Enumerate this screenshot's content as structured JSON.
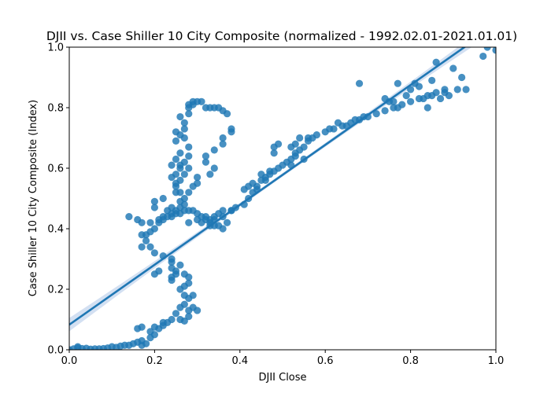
{
  "chart_data": {
    "type": "scatter",
    "title": "DJII vs. Case Shiller 10 City Composite (normalized - 1992.02.01-2021.01.01)",
    "xlabel": "DJII Close",
    "ylabel": "Case Shiller 10 City Composite (Index)",
    "xlim": [
      0,
      1
    ],
    "ylim": [
      0,
      1
    ],
    "xticks": [
      "0.0",
      "0.2",
      "0.4",
      "0.6",
      "0.8",
      "1.0"
    ],
    "yticks": [
      "0.0",
      "0.2",
      "0.4",
      "0.6",
      "0.8",
      "1.0"
    ],
    "grid": false,
    "colors": {
      "points": "#1f77b4",
      "line": "#1f77b4",
      "band": "#aec7e8"
    },
    "regression": {
      "intercept": 0.083,
      "slope": 0.99,
      "band_at_x0": 0.022,
      "band_at_xmid": 0.006,
      "band_at_x1": 0.02
    },
    "points": [
      [
        0.0,
        0.0
      ],
      [
        0.01,
        0.003
      ],
      [
        0.02,
        0.006
      ],
      [
        0.03,
        0.004
      ],
      [
        0.05,
        0.002
      ],
      [
        0.06,
        0.003
      ],
      [
        0.08,
        0.004
      ],
      [
        0.09,
        0.006
      ],
      [
        0.1,
        0.01
      ],
      [
        0.12,
        0.012
      ],
      [
        0.13,
        0.015
      ],
      [
        0.15,
        0.02
      ],
      [
        0.16,
        0.025
      ],
      [
        0.17,
        0.03
      ],
      [
        0.17,
        0.015
      ],
      [
        0.18,
        0.02
      ],
      [
        0.19,
        0.04
      ],
      [
        0.2,
        0.05
      ],
      [
        0.21,
        0.07
      ],
      [
        0.22,
        0.08
      ],
      [
        0.23,
        0.09
      ],
      [
        0.2,
        0.075
      ],
      [
        0.16,
        0.07
      ],
      [
        0.17,
        0.075
      ],
      [
        0.24,
        0.1
      ],
      [
        0.25,
        0.12
      ],
      [
        0.26,
        0.1
      ],
      [
        0.27,
        0.095
      ],
      [
        0.28,
        0.11
      ],
      [
        0.27,
        0.15
      ],
      [
        0.28,
        0.17
      ],
      [
        0.29,
        0.18
      ],
      [
        0.27,
        0.21
      ],
      [
        0.28,
        0.22
      ],
      [
        0.28,
        0.24
      ],
      [
        0.27,
        0.25
      ],
      [
        0.25,
        0.26
      ],
      [
        0.24,
        0.27
      ],
      [
        0.24,
        0.29
      ],
      [
        0.24,
        0.24
      ],
      [
        0.26,
        0.14
      ],
      [
        0.3,
        0.13
      ],
      [
        0.29,
        0.14
      ],
      [
        0.28,
        0.13
      ],
      [
        0.26,
        0.2
      ],
      [
        0.27,
        0.18
      ],
      [
        0.25,
        0.25
      ],
      [
        0.26,
        0.28
      ],
      [
        0.24,
        0.3
      ],
      [
        0.24,
        0.23
      ],
      [
        0.21,
        0.26
      ],
      [
        0.2,
        0.25
      ],
      [
        0.22,
        0.31
      ],
      [
        0.2,
        0.32
      ],
      [
        0.19,
        0.34
      ],
      [
        0.17,
        0.34
      ],
      [
        0.18,
        0.36
      ],
      [
        0.18,
        0.38
      ],
      [
        0.17,
        0.38
      ],
      [
        0.19,
        0.39
      ],
      [
        0.2,
        0.4
      ],
      [
        0.21,
        0.42
      ],
      [
        0.22,
        0.43
      ],
      [
        0.23,
        0.44
      ],
      [
        0.24,
        0.44
      ],
      [
        0.25,
        0.45
      ],
      [
        0.26,
        0.45
      ],
      [
        0.27,
        0.46
      ],
      [
        0.28,
        0.46
      ],
      [
        0.29,
        0.46
      ],
      [
        0.3,
        0.45
      ],
      [
        0.31,
        0.44
      ],
      [
        0.32,
        0.43
      ],
      [
        0.33,
        0.42
      ],
      [
        0.34,
        0.41
      ],
      [
        0.35,
        0.41
      ],
      [
        0.36,
        0.4
      ],
      [
        0.37,
        0.42
      ],
      [
        0.36,
        0.44
      ],
      [
        0.34,
        0.44
      ],
      [
        0.33,
        0.43
      ],
      [
        0.32,
        0.44
      ],
      [
        0.35,
        0.45
      ],
      [
        0.36,
        0.46
      ],
      [
        0.38,
        0.46
      ],
      [
        0.14,
        0.44
      ],
      [
        0.16,
        0.43
      ],
      [
        0.17,
        0.42
      ],
      [
        0.19,
        0.42
      ],
      [
        0.2,
        0.47
      ],
      [
        0.2,
        0.49
      ],
      [
        0.22,
        0.5
      ],
      [
        0.23,
        0.46
      ],
      [
        0.24,
        0.47
      ],
      [
        0.22,
        0.44
      ],
      [
        0.21,
        0.43
      ],
      [
        0.28,
        0.42
      ],
      [
        0.3,
        0.43
      ],
      [
        0.31,
        0.42
      ],
      [
        0.33,
        0.41
      ],
      [
        0.34,
        0.43
      ],
      [
        0.25,
        0.52
      ],
      [
        0.25,
        0.54
      ],
      [
        0.26,
        0.56
      ],
      [
        0.27,
        0.58
      ],
      [
        0.25,
        0.58
      ],
      [
        0.26,
        0.6
      ],
      [
        0.27,
        0.62
      ],
      [
        0.28,
        0.64
      ],
      [
        0.28,
        0.67
      ],
      [
        0.27,
        0.7
      ],
      [
        0.26,
        0.71
      ],
      [
        0.25,
        0.72
      ],
      [
        0.27,
        0.73
      ],
      [
        0.27,
        0.75
      ],
      [
        0.26,
        0.77
      ],
      [
        0.28,
        0.78
      ],
      [
        0.28,
        0.8
      ],
      [
        0.29,
        0.81
      ],
      [
        0.3,
        0.82
      ],
      [
        0.29,
        0.82
      ],
      [
        0.31,
        0.82
      ],
      [
        0.32,
        0.8
      ],
      [
        0.33,
        0.8
      ],
      [
        0.34,
        0.8
      ],
      [
        0.35,
        0.8
      ],
      [
        0.36,
        0.79
      ],
      [
        0.37,
        0.78
      ],
      [
        0.38,
        0.73
      ],
      [
        0.38,
        0.72
      ],
      [
        0.36,
        0.7
      ],
      [
        0.36,
        0.68
      ],
      [
        0.34,
        0.66
      ],
      [
        0.32,
        0.64
      ],
      [
        0.32,
        0.62
      ],
      [
        0.34,
        0.6
      ],
      [
        0.33,
        0.58
      ],
      [
        0.3,
        0.57
      ],
      [
        0.3,
        0.55
      ],
      [
        0.29,
        0.54
      ],
      [
        0.28,
        0.52
      ],
      [
        0.26,
        0.52
      ],
      [
        0.25,
        0.63
      ],
      [
        0.24,
        0.61
      ],
      [
        0.26,
        0.65
      ],
      [
        0.28,
        0.6
      ],
      [
        0.24,
        0.57
      ],
      [
        0.25,
        0.55
      ],
      [
        0.27,
        0.5
      ],
      [
        0.27,
        0.48
      ],
      [
        0.26,
        0.49
      ],
      [
        0.24,
        0.45
      ],
      [
        0.25,
        0.46
      ],
      [
        0.26,
        0.47
      ],
      [
        0.26,
        0.61
      ],
      [
        0.25,
        0.69
      ],
      [
        0.28,
        0.81
      ],
      [
        0.38,
        0.46
      ],
      [
        0.39,
        0.47
      ],
      [
        0.41,
        0.48
      ],
      [
        0.42,
        0.5
      ],
      [
        0.43,
        0.52
      ],
      [
        0.44,
        0.53
      ],
      [
        0.45,
        0.56
      ],
      [
        0.46,
        0.57
      ],
      [
        0.47,
        0.58
      ],
      [
        0.48,
        0.59
      ],
      [
        0.49,
        0.6
      ],
      [
        0.5,
        0.61
      ],
      [
        0.51,
        0.62
      ],
      [
        0.52,
        0.63
      ],
      [
        0.53,
        0.64
      ],
      [
        0.54,
        0.66
      ],
      [
        0.55,
        0.67
      ],
      [
        0.56,
        0.69
      ],
      [
        0.57,
        0.7
      ],
      [
        0.58,
        0.71
      ],
      [
        0.6,
        0.72
      ],
      [
        0.62,
        0.73
      ],
      [
        0.64,
        0.74
      ],
      [
        0.66,
        0.75
      ],
      [
        0.68,
        0.76
      ],
      [
        0.7,
        0.77
      ],
      [
        0.72,
        0.78
      ],
      [
        0.74,
        0.79
      ],
      [
        0.76,
        0.8
      ],
      [
        0.78,
        0.81
      ],
      [
        0.8,
        0.82
      ],
      [
        0.82,
        0.83
      ],
      [
        0.84,
        0.84
      ],
      [
        0.86,
        0.85
      ],
      [
        0.88,
        0.86
      ],
      [
        0.41,
        0.53
      ],
      [
        0.42,
        0.54
      ],
      [
        0.43,
        0.55
      ],
      [
        0.45,
        0.58
      ],
      [
        0.47,
        0.59
      ],
      [
        0.48,
        0.65
      ],
      [
        0.48,
        0.67
      ],
      [
        0.49,
        0.68
      ],
      [
        0.52,
        0.67
      ],
      [
        0.53,
        0.68
      ],
      [
        0.54,
        0.7
      ],
      [
        0.56,
        0.7
      ],
      [
        0.53,
        0.65
      ],
      [
        0.52,
        0.61
      ],
      [
        0.55,
        0.63
      ],
      [
        0.44,
        0.54
      ],
      [
        0.46,
        0.56
      ],
      [
        0.61,
        0.73
      ],
      [
        0.63,
        0.75
      ],
      [
        0.65,
        0.74
      ],
      [
        0.67,
        0.76
      ],
      [
        0.69,
        0.77
      ],
      [
        0.68,
        0.88
      ],
      [
        0.74,
        0.83
      ],
      [
        0.75,
        0.82
      ],
      [
        0.76,
        0.82
      ],
      [
        0.77,
        0.8
      ],
      [
        0.77,
        0.88
      ],
      [
        0.79,
        0.84
      ],
      [
        0.8,
        0.86
      ],
      [
        0.81,
        0.88
      ],
      [
        0.82,
        0.87
      ],
      [
        0.83,
        0.83
      ],
      [
        0.84,
        0.8
      ],
      [
        0.85,
        0.84
      ],
      [
        0.85,
        0.89
      ],
      [
        0.86,
        0.95
      ],
      [
        0.87,
        0.83
      ],
      [
        0.88,
        0.85
      ],
      [
        0.89,
        0.84
      ],
      [
        0.9,
        0.93
      ],
      [
        0.91,
        0.86
      ],
      [
        0.92,
        0.9
      ],
      [
        0.93,
        0.86
      ],
      [
        0.97,
        0.97
      ],
      [
        0.98,
        1.0
      ],
      [
        1.0,
        0.99
      ],
      [
        0.02,
        0.01
      ],
      [
        0.04,
        0.005
      ],
      [
        0.07,
        0.003
      ],
      [
        0.11,
        0.008
      ],
      [
        0.14,
        0.015
      ],
      [
        0.19,
        0.06
      ],
      [
        0.22,
        0.09
      ]
    ]
  }
}
